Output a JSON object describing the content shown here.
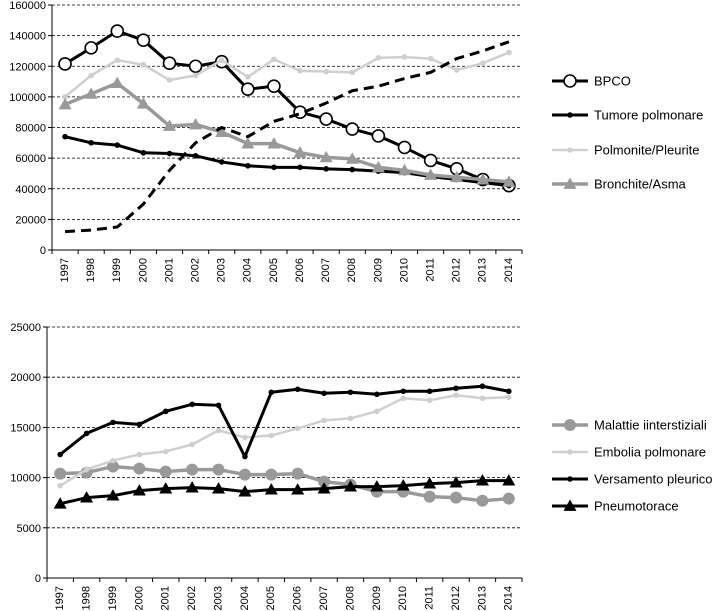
{
  "chart_data": [
    {
      "type": "line",
      "x": [
        "1997",
        "1998",
        "1999",
        "2000",
        "2001",
        "2002",
        "2003",
        "2004",
        "2005",
        "2006",
        "2007",
        "2008",
        "2009",
        "2010",
        "2011",
        "2012",
        "2013",
        "2014"
      ],
      "ylim": [
        0,
        160000
      ],
      "yticks": [
        0,
        20000,
        40000,
        60000,
        80000,
        100000,
        120000,
        140000,
        160000
      ],
      "ytick_labels": [
        "0",
        "20000",
        "40000",
        "60000",
        "80000",
        "100000",
        "120000",
        "140000",
        "160000"
      ],
      "grid": true,
      "legend_position": "right",
      "series": [
        {
          "name": "BPCO",
          "color": "#000000",
          "marker": "open-circle",
          "style": "solid",
          "values": [
            121500,
            132000,
            143000,
            137000,
            122000,
            120000,
            123000,
            105000,
            107000,
            90000,
            85500,
            79000,
            74500,
            67000,
            58500,
            53000,
            46000,
            42000
          ]
        },
        {
          "name": "Tumore polmonare",
          "color": "#000000",
          "marker": "small-dot",
          "style": "solid",
          "values": [
            74000,
            70000,
            68500,
            63500,
            63000,
            61500,
            57500,
            55000,
            54000,
            54000,
            53000,
            52500,
            51500,
            50500,
            48000,
            46000,
            44000,
            42000
          ]
        },
        {
          "name": "Polmonite/Pleurite",
          "color": "#cfcfcf",
          "marker": "small-dot",
          "style": "solid",
          "values": [
            100000,
            114000,
            124000,
            121000,
            111000,
            114000,
            124000,
            113000,
            124500,
            117000,
            116500,
            116000,
            125500,
            126000,
            125000,
            117500,
            122000,
            129000
          ]
        },
        {
          "name": "Bronchite/Asma",
          "color": "#999999",
          "marker": "triangle",
          "style": "solid",
          "values": [
            95000,
            102000,
            109000,
            95500,
            81000,
            82000,
            77000,
            69500,
            69500,
            63500,
            60500,
            59500,
            54000,
            52000,
            49000,
            47500,
            46000,
            44500
          ]
        },
        {
          "name": "",
          "color": "#000000",
          "marker": "none",
          "style": "dashed",
          "values": [
            12000,
            13000,
            15000,
            30000,
            52000,
            70000,
            80000,
            74000,
            84000,
            89000,
            96000,
            104000,
            107000,
            112000,
            116000,
            125000,
            130000,
            136000
          ]
        }
      ]
    },
    {
      "type": "line",
      "x": [
        "1997",
        "1998",
        "1999",
        "2000",
        "2001",
        "2002",
        "2003",
        "2004",
        "2005",
        "2006",
        "2007",
        "2008",
        "2009",
        "2010",
        "2011",
        "2012",
        "2013",
        "2014"
      ],
      "ylim": [
        0,
        25000
      ],
      "yticks": [
        0,
        5000,
        10000,
        15000,
        20000,
        25000
      ],
      "ytick_labels": [
        "0",
        "5000",
        "10000",
        "15000",
        "20000",
        "25000"
      ],
      "grid": true,
      "legend_position": "right",
      "series": [
        {
          "name": "Malattie iinterstiziali",
          "color": "#999999",
          "marker": "circle",
          "style": "solid",
          "values": [
            10400,
            10500,
            11100,
            10900,
            10600,
            10800,
            10800,
            10300,
            10300,
            10400,
            9600,
            9300,
            8600,
            8600,
            8100,
            8000,
            7700,
            7900
          ]
        },
        {
          "name": "Embolia polmonare",
          "color": "#cfcfcf",
          "marker": "small-dot",
          "style": "solid",
          "values": [
            9200,
            10800,
            11700,
            12300,
            12600,
            13300,
            14700,
            14000,
            14200,
            14900,
            15700,
            15900,
            16600,
            17900,
            17700,
            18200,
            17900,
            18000
          ]
        },
        {
          "name": "Versamento pleurico",
          "color": "#000000",
          "marker": "small-dot",
          "style": "solid",
          "values": [
            12300,
            14400,
            15500,
            15300,
            16600,
            17300,
            17200,
            12100,
            18500,
            18800,
            18400,
            18500,
            18300,
            18600,
            18600,
            18900,
            19100,
            18600
          ]
        },
        {
          "name": "Pneumotorace",
          "color": "#000000",
          "marker": "triangle",
          "style": "solid",
          "values": [
            7400,
            8000,
            8200,
            8700,
            8900,
            9000,
            8900,
            8600,
            8800,
            8800,
            8900,
            9100,
            9100,
            9200,
            9400,
            9500,
            9700,
            9700
          ]
        }
      ]
    }
  ]
}
